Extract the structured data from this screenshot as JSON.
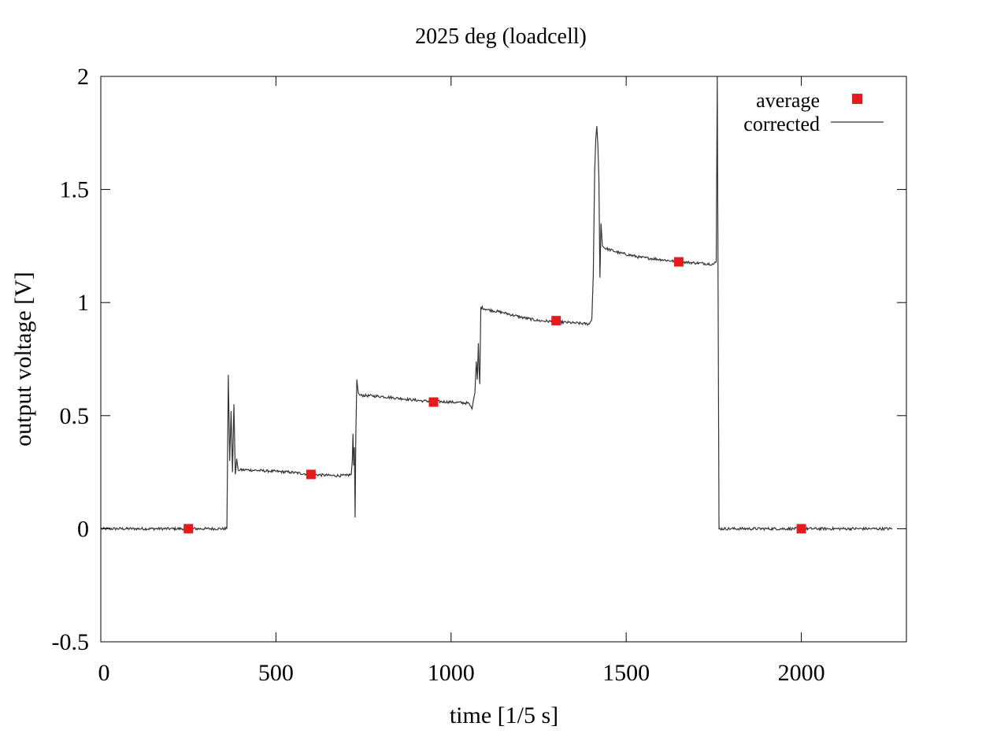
{
  "chart_data": {
    "type": "line",
    "title": "2025 deg (loadcell)",
    "xlabel": "time [1/5 s]",
    "ylabel": "output voltage [V]",
    "xlim": [
      0,
      2300
    ],
    "ylim": [
      -0.5,
      2
    ],
    "xticks": [
      0,
      500,
      1000,
      1500,
      2000
    ],
    "yticks": [
      -0.5,
      0,
      0.5,
      1,
      1.5,
      2
    ],
    "xtick_labels": [
      "0",
      "500",
      "1000",
      "1500",
      "2000"
    ],
    "ytick_labels": [
      "-0.5",
      "0",
      "0.5",
      "1",
      "1.5",
      "2"
    ],
    "grid": false,
    "legend": "top-right",
    "series": [
      {
        "name": "average",
        "kind": "points",
        "marker": "square",
        "color": "#e41a1c",
        "points": [
          {
            "x": 250,
            "y": 0.0
          },
          {
            "x": 600,
            "y": 0.24
          },
          {
            "x": 950,
            "y": 0.56
          },
          {
            "x": 1300,
            "y": 0.92
          },
          {
            "x": 1650,
            "y": 1.18
          },
          {
            "x": 2000,
            "y": 0.0
          }
        ]
      },
      {
        "name": "corrected",
        "kind": "line",
        "color": "#333333",
        "points": [
          [
            0,
            0.0
          ],
          [
            100,
            0.0
          ],
          [
            200,
            0.0
          ],
          [
            300,
            0.0
          ],
          [
            360,
            0.0
          ],
          [
            364,
            0.68
          ],
          [
            368,
            0.3
          ],
          [
            372,
            0.52
          ],
          [
            376,
            0.25
          ],
          [
            380,
            0.55
          ],
          [
            384,
            0.24
          ],
          [
            388,
            0.31
          ],
          [
            392,
            0.26
          ],
          [
            420,
            0.26
          ],
          [
            480,
            0.255
          ],
          [
            540,
            0.25
          ],
          [
            600,
            0.24
          ],
          [
            660,
            0.235
          ],
          [
            700,
            0.235
          ],
          [
            715,
            0.24
          ],
          [
            718,
            0.3
          ],
          [
            720,
            0.42
          ],
          [
            722,
            0.28
          ],
          [
            724,
            0.36
          ],
          [
            726,
            0.05
          ],
          [
            728,
            0.4
          ],
          [
            731,
            0.66
          ],
          [
            735,
            0.6
          ],
          [
            740,
            0.59
          ],
          [
            800,
            0.585
          ],
          [
            860,
            0.575
          ],
          [
            920,
            0.565
          ],
          [
            1000,
            0.56
          ],
          [
            1050,
            0.555
          ],
          [
            1060,
            0.53
          ],
          [
            1064,
            0.57
          ],
          [
            1068,
            0.6
          ],
          [
            1072,
            0.74
          ],
          [
            1075,
            0.66
          ],
          [
            1078,
            0.82
          ],
          [
            1080,
            0.7
          ],
          [
            1082,
            0.64
          ],
          [
            1085,
            0.98
          ],
          [
            1100,
            0.97
          ],
          [
            1150,
            0.955
          ],
          [
            1200,
            0.935
          ],
          [
            1250,
            0.92
          ],
          [
            1300,
            0.915
          ],
          [
            1350,
            0.91
          ],
          [
            1395,
            0.905
          ],
          [
            1402,
            0.93
          ],
          [
            1406,
            1.12
          ],
          [
            1410,
            1.58
          ],
          [
            1413,
            1.72
          ],
          [
            1416,
            1.78
          ],
          [
            1419,
            1.7
          ],
          [
            1422,
            1.55
          ],
          [
            1425,
            1.11
          ],
          [
            1428,
            1.35
          ],
          [
            1432,
            1.25
          ],
          [
            1440,
            1.24
          ],
          [
            1480,
            1.22
          ],
          [
            1540,
            1.2
          ],
          [
            1600,
            1.19
          ],
          [
            1650,
            1.18
          ],
          [
            1700,
            1.175
          ],
          [
            1750,
            1.17
          ],
          [
            1757,
            1.18
          ],
          [
            1760,
            2.0
          ],
          [
            1762,
            1.2
          ],
          [
            1765,
            0.0
          ],
          [
            1800,
            0.0
          ],
          [
            1900,
            0.0
          ],
          [
            2000,
            0.0
          ],
          [
            2100,
            0.0
          ],
          [
            2200,
            0.0
          ],
          [
            2260,
            0.0
          ]
        ]
      }
    ]
  }
}
